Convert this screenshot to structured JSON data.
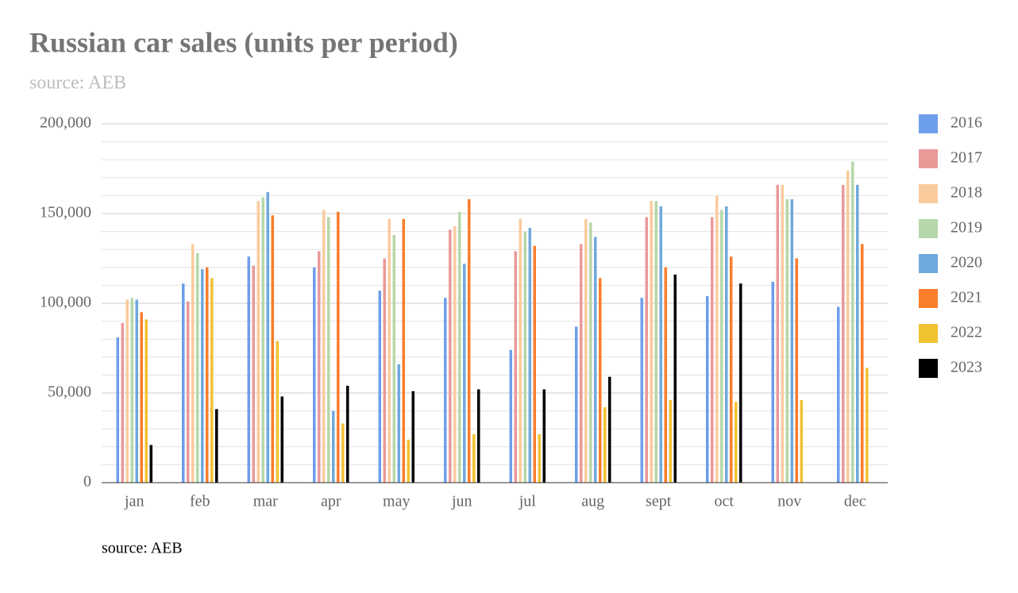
{
  "chart_data": {
    "type": "bar",
    "title": "Russian car sales (units per period)",
    "subtitle": "source: AEB",
    "footnote": "source: AEB",
    "categories": [
      "jan",
      "feb",
      "mar",
      "apr",
      "may",
      "jun",
      "jul",
      "aug",
      "sept",
      "oct",
      "nov",
      "dec"
    ],
    "series": [
      {
        "name": "2016",
        "color": "#6d9eeb",
        "values": [
          81000,
          111000,
          126000,
          120000,
          107000,
          103000,
          74000,
          87000,
          103000,
          104000,
          112000,
          98000
        ]
      },
      {
        "name": "2017",
        "color": "#ea9999",
        "values": [
          89000,
          101000,
          121000,
          129000,
          125000,
          141000,
          129000,
          133000,
          148000,
          148000,
          166000,
          166000
        ]
      },
      {
        "name": "2018",
        "color": "#f9cb9c",
        "values": [
          102000,
          133000,
          157000,
          152000,
          147000,
          143000,
          147000,
          147000,
          157000,
          160000,
          166000,
          174000
        ]
      },
      {
        "name": "2019",
        "color": "#b6d7a8",
        "values": [
          103000,
          128000,
          159000,
          148000,
          138000,
          151000,
          140000,
          145000,
          157000,
          152000,
          158000,
          179000
        ]
      },
      {
        "name": "2020",
        "color": "#6fa8dc",
        "values": [
          102000,
          119000,
          162000,
          40000,
          66000,
          122000,
          142000,
          137000,
          154000,
          154000,
          158000,
          166000
        ]
      },
      {
        "name": "2021",
        "color": "#fa7d2b",
        "values": [
          95000,
          120000,
          149000,
          151000,
          147000,
          158000,
          132000,
          114000,
          120000,
          126000,
          125000,
          133000
        ]
      },
      {
        "name": "2022",
        "color": "#f1c232",
        "values": [
          91000,
          114000,
          79000,
          33000,
          24000,
          27000,
          27000,
          42000,
          46000,
          45000,
          46000,
          64000
        ]
      },
      {
        "name": "2023",
        "color": "#000000",
        "values": [
          21000,
          41000,
          48000,
          54000,
          51000,
          52000,
          52000,
          59000,
          116000,
          111000,
          null,
          null
        ]
      }
    ],
    "ylim": [
      0,
      200000
    ],
    "yticks": [
      0,
      {
        "value": 50000,
        "label": "50,000"
      },
      {
        "value": 100000,
        "label": "100,000"
      },
      {
        "value": 150000,
        "label": "150,000"
      },
      {
        "value": 200000,
        "label": "200,000"
      }
    ],
    "grid": true,
    "legend": "right"
  }
}
